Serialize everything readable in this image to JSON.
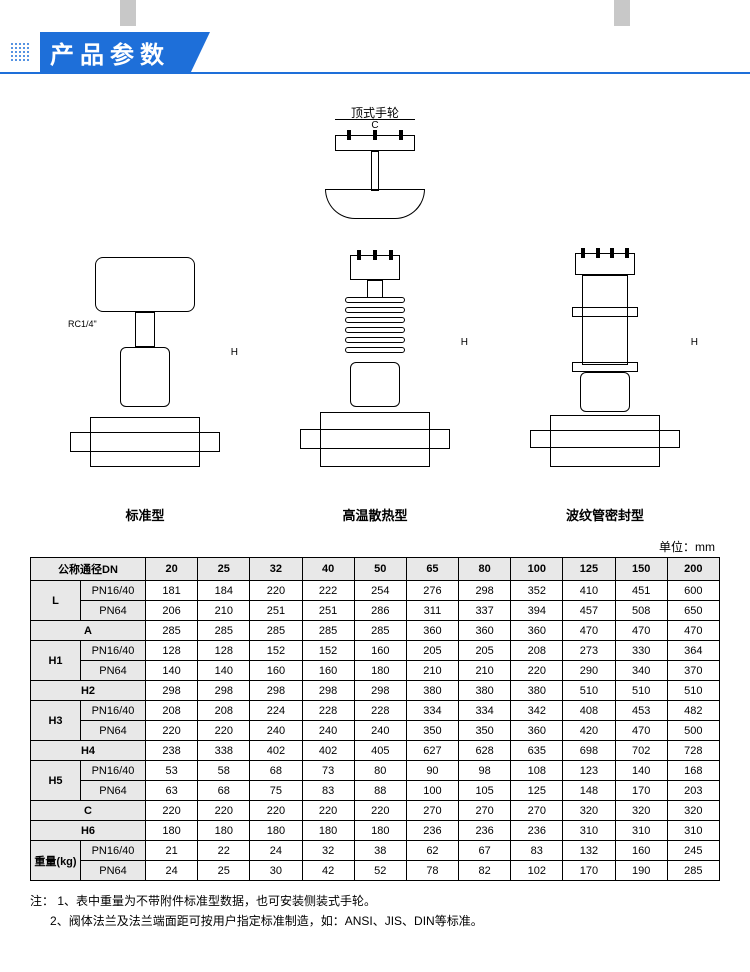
{
  "header": {
    "title": "产品参数"
  },
  "diagrams": {
    "top_label": "顶式手轮",
    "top_dim": "C",
    "fig1_label": "标准型",
    "fig1_rc": "RC1/4\"",
    "fig1_dim": "H",
    "fig2_label": "高温散热型",
    "fig2_dim": "H",
    "fig3_label": "波纹管密封型",
    "fig3_dim": "H"
  },
  "table": {
    "unit": "单位：mm",
    "header_dn": "公称通径DN",
    "dns": [
      "20",
      "25",
      "32",
      "40",
      "50",
      "65",
      "80",
      "100",
      "125",
      "150",
      "200"
    ],
    "rows": [
      {
        "label": "L",
        "sub": "PN16/40",
        "vals": [
          "181",
          "184",
          "220",
          "222",
          "254",
          "276",
          "298",
          "352",
          "410",
          "451",
          "600"
        ],
        "rowspan": 2
      },
      {
        "label": "",
        "sub": "PN64",
        "vals": [
          "206",
          "210",
          "251",
          "251",
          "286",
          "311",
          "337",
          "394",
          "457",
          "508",
          "650"
        ]
      },
      {
        "label": "A",
        "sub": "",
        "vals": [
          "285",
          "285",
          "285",
          "285",
          "285",
          "360",
          "360",
          "360",
          "470",
          "470",
          "470"
        ],
        "single": true
      },
      {
        "label": "H1",
        "sub": "PN16/40",
        "vals": [
          "128",
          "128",
          "152",
          "152",
          "160",
          "205",
          "205",
          "208",
          "273",
          "330",
          "364"
        ],
        "rowspan": 2
      },
      {
        "label": "",
        "sub": "PN64",
        "vals": [
          "140",
          "140",
          "160",
          "160",
          "180",
          "210",
          "210",
          "220",
          "290",
          "340",
          "370"
        ]
      },
      {
        "label": "H2",
        "sub": "",
        "vals": [
          "298",
          "298",
          "298",
          "298",
          "298",
          "380",
          "380",
          "380",
          "510",
          "510",
          "510"
        ],
        "single": true
      },
      {
        "label": "H3",
        "sub": "PN16/40",
        "vals": [
          "208",
          "208",
          "224",
          "228",
          "228",
          "334",
          "334",
          "342",
          "408",
          "453",
          "482"
        ],
        "rowspan": 2
      },
      {
        "label": "",
        "sub": "PN64",
        "vals": [
          "220",
          "220",
          "240",
          "240",
          "240",
          "350",
          "350",
          "360",
          "420",
          "470",
          "500"
        ]
      },
      {
        "label": "H4",
        "sub": "",
        "vals": [
          "238",
          "338",
          "402",
          "402",
          "405",
          "627",
          "628",
          "635",
          "698",
          "702",
          "728"
        ],
        "single": true
      },
      {
        "label": "H5",
        "sub": "PN16/40",
        "vals": [
          "53",
          "58",
          "68",
          "73",
          "80",
          "90",
          "98",
          "108",
          "123",
          "140",
          "168"
        ],
        "rowspan": 2
      },
      {
        "label": "",
        "sub": "PN64",
        "vals": [
          "63",
          "68",
          "75",
          "83",
          "88",
          "100",
          "105",
          "125",
          "148",
          "170",
          "203"
        ]
      },
      {
        "label": "C",
        "sub": "",
        "vals": [
          "220",
          "220",
          "220",
          "220",
          "220",
          "270",
          "270",
          "270",
          "320",
          "320",
          "320"
        ],
        "single": true
      },
      {
        "label": "H6",
        "sub": "",
        "vals": [
          "180",
          "180",
          "180",
          "180",
          "180",
          "236",
          "236",
          "236",
          "310",
          "310",
          "310"
        ],
        "single": true
      },
      {
        "label": "重量(kg)",
        "sub": "PN16/40",
        "vals": [
          "21",
          "22",
          "24",
          "32",
          "38",
          "62",
          "67",
          "83",
          "132",
          "160",
          "245"
        ],
        "rowspan": 2
      },
      {
        "label": "",
        "sub": "PN64",
        "vals": [
          "24",
          "25",
          "30",
          "42",
          "52",
          "78",
          "82",
          "102",
          "170",
          "190",
          "285"
        ]
      }
    ]
  },
  "notes": {
    "prefix": "注：",
    "n1": "1、表中重量为不带附件标准型数据，也可安装侧装式手轮。",
    "n2": "2、阀体法兰及法兰端面距可按用户指定标准制造，如：ANSI、JIS、DIN等标准。"
  }
}
